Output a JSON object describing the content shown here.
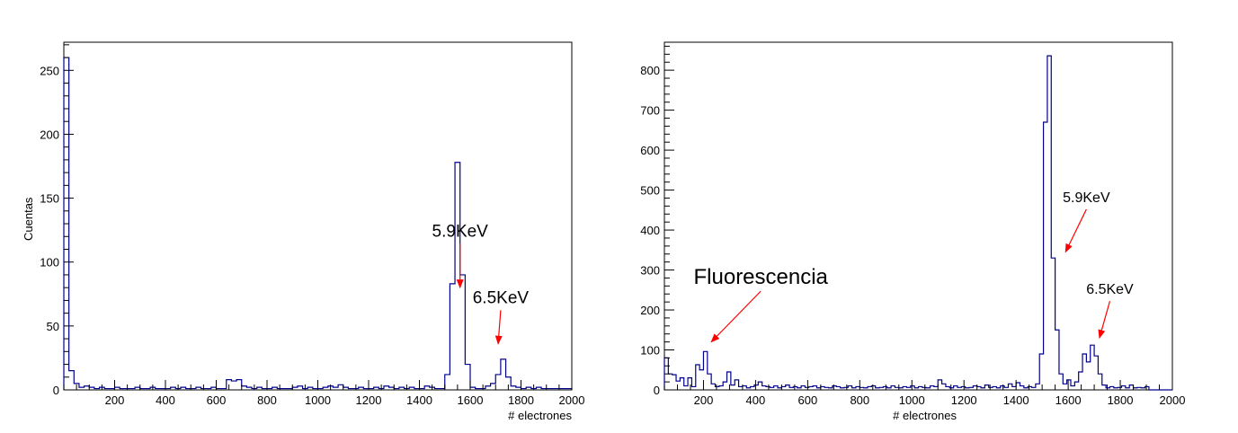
{
  "colors": {
    "histogram": "#00008b",
    "arrow": "#ff0000",
    "axis": "#000000"
  },
  "chart_data": [
    {
      "type": "histogram",
      "xlabel": "# electrones",
      "ylabel": "Cuentas",
      "xlim": [
        0,
        2000
      ],
      "ylim": [
        0,
        272
      ],
      "xticks": [
        200,
        400,
        600,
        800,
        1000,
        1200,
        1400,
        1600,
        1800,
        2000
      ],
      "yticks": [
        0,
        50,
        100,
        150,
        200,
        250
      ],
      "grid": false,
      "bins": {
        "x": [
          0,
          20,
          40,
          60,
          80,
          100,
          120,
          140,
          160,
          180,
          200,
          220,
          240,
          260,
          280,
          300,
          320,
          340,
          360,
          380,
          400,
          420,
          440,
          460,
          480,
          500,
          520,
          540,
          560,
          580,
          600,
          620,
          640,
          660,
          680,
          700,
          720,
          740,
          760,
          780,
          800,
          820,
          840,
          860,
          880,
          900,
          920,
          940,
          960,
          980,
          1000,
          1020,
          1040,
          1060,
          1080,
          1100,
          1120,
          1140,
          1160,
          1180,
          1200,
          1220,
          1240,
          1260,
          1280,
          1300,
          1320,
          1340,
          1360,
          1380,
          1400,
          1420,
          1440,
          1460,
          1480,
          1500,
          1520,
          1540,
          1560,
          1580,
          1600,
          1620,
          1640,
          1660,
          1680,
          1700,
          1720,
          1740,
          1760,
          1780,
          1800,
          1820,
          1840,
          1860,
          1880,
          1900,
          1920,
          1940,
          1960,
          1980
        ],
        "counts": [
          260,
          15,
          5,
          2,
          3,
          2,
          1,
          2,
          1,
          1,
          2,
          1,
          1,
          1,
          2,
          1,
          1,
          2,
          1,
          1,
          1,
          2,
          1,
          2,
          1,
          1,
          2,
          1,
          1,
          2,
          1,
          1,
          8,
          7,
          8,
          3,
          2,
          1,
          2,
          1,
          1,
          2,
          1,
          1,
          1,
          2,
          3,
          1,
          2,
          1,
          1,
          2,
          3,
          2,
          4,
          2,
          1,
          1,
          2,
          1,
          1,
          2,
          1,
          3,
          2,
          1,
          2,
          1,
          2,
          1,
          1,
          3,
          2,
          1,
          1,
          12,
          83,
          178,
          90,
          20,
          2,
          1,
          1,
          3,
          5,
          12,
          24,
          10,
          3,
          2,
          1,
          2,
          1,
          2,
          1,
          1,
          1,
          1,
          1,
          1
        ]
      },
      "annotations": [
        {
          "text": "5.9KeV",
          "x": 1560,
          "y": 120,
          "arrow_to": [
            1560,
            80
          ]
        },
        {
          "text": "6.5KeV",
          "x": 1720,
          "y": 68,
          "arrow_to": [
            1710,
            36
          ]
        }
      ]
    },
    {
      "type": "histogram",
      "xlabel": "# electrones",
      "ylabel": "",
      "xlim": [
        50,
        2000
      ],
      "ylim": [
        0,
        870
      ],
      "xticks": [
        200,
        400,
        600,
        800,
        1000,
        1200,
        1400,
        1600,
        1800,
        2000
      ],
      "yticks": [
        0,
        100,
        200,
        300,
        400,
        500,
        600,
        700,
        800
      ],
      "grid": false,
      "bins": {
        "x": [
          50,
          65,
          80,
          95,
          110,
          125,
          140,
          155,
          170,
          185,
          200,
          215,
          230,
          245,
          260,
          275,
          290,
          305,
          320,
          335,
          350,
          365,
          380,
          395,
          410,
          425,
          440,
          455,
          470,
          485,
          500,
          515,
          530,
          545,
          560,
          575,
          590,
          605,
          620,
          635,
          650,
          665,
          680,
          695,
          710,
          725,
          740,
          755,
          770,
          785,
          800,
          815,
          830,
          845,
          860,
          875,
          890,
          905,
          920,
          935,
          950,
          965,
          980,
          995,
          1010,
          1025,
          1040,
          1055,
          1070,
          1085,
          1100,
          1115,
          1130,
          1145,
          1160,
          1175,
          1190,
          1205,
          1220,
          1235,
          1250,
          1265,
          1280,
          1295,
          1310,
          1325,
          1340,
          1355,
          1370,
          1385,
          1400,
          1415,
          1430,
          1445,
          1460,
          1475,
          1490,
          1505,
          1520,
          1535,
          1550,
          1565,
          1580,
          1595,
          1610,
          1625,
          1640,
          1655,
          1670,
          1685,
          1700,
          1715,
          1730,
          1745,
          1760,
          1775,
          1790,
          1805,
          1820,
          1835,
          1850,
          1865,
          1880,
          1895,
          1910,
          1925,
          1940,
          1955,
          1970,
          1985
        ],
        "counts": [
          80,
          40,
          38,
          22,
          30,
          10,
          30,
          8,
          63,
          50,
          96,
          40,
          15,
          8,
          10,
          20,
          45,
          12,
          25,
          8,
          10,
          5,
          8,
          12,
          20,
          10,
          8,
          6,
          10,
          5,
          8,
          12,
          6,
          8,
          5,
          10,
          6,
          8,
          10,
          5,
          8,
          6,
          5,
          10,
          8,
          5,
          6,
          10,
          5,
          8,
          6,
          5,
          8,
          10,
          5,
          6,
          8,
          5,
          10,
          6,
          5,
          8,
          6,
          10,
          5,
          8,
          6,
          5,
          10,
          8,
          25,
          15,
          8,
          5,
          10,
          6,
          8,
          5,
          6,
          10,
          8,
          5,
          12,
          6,
          8,
          5,
          10,
          6,
          15,
          8,
          18,
          10,
          5,
          8,
          6,
          15,
          90,
          670,
          836,
          330,
          150,
          40,
          15,
          25,
          10,
          20,
          45,
          90,
          70,
          112,
          85,
          40,
          12,
          5,
          8,
          5,
          6,
          10,
          5,
          12,
          5,
          6,
          5,
          8,
          0,
          0,
          0,
          0,
          0,
          0
        ],
        "end": 2000
      },
      "annotations": [
        {
          "text": "5.9KeV",
          "x": 1670,
          "y": 470,
          "arrow_to": [
            1590,
            345
          ]
        },
        {
          "text": "6.5KeV",
          "x": 1760,
          "y": 240,
          "arrow_to": [
            1720,
            130
          ]
        },
        {
          "text": "Fluorescencia",
          "x": 420,
          "y": 265,
          "arrow_to": [
            230,
            120
          ]
        }
      ]
    }
  ]
}
